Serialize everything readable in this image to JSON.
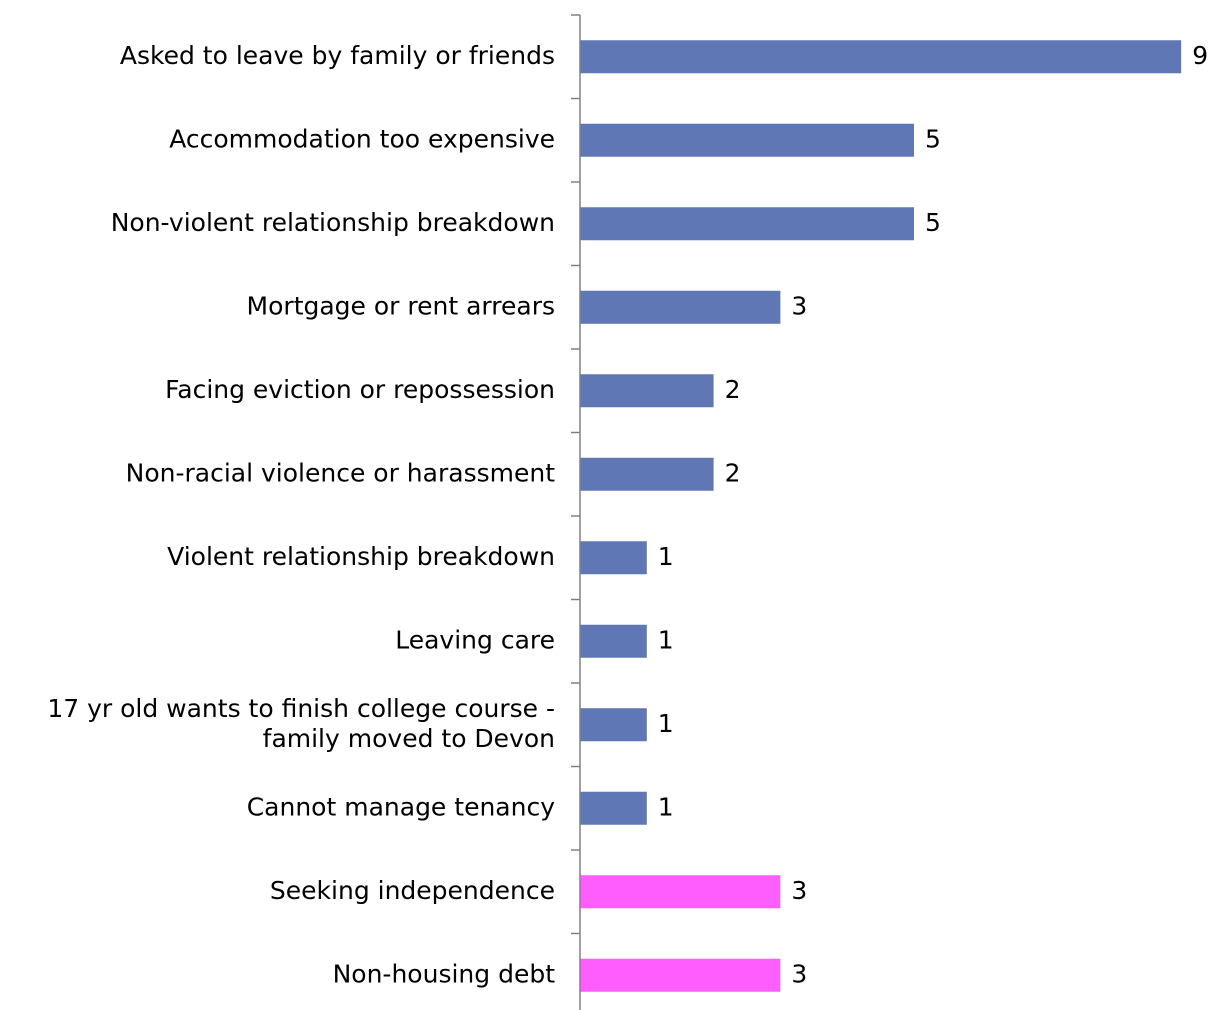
{
  "chart_data": {
    "type": "bar",
    "orientation": "horizontal",
    "title": "",
    "xlabel": "",
    "ylabel": "",
    "xlim": [
      0,
      9
    ],
    "grid": false,
    "legend": "none",
    "categories": [
      [
        "Asked to leave by family or friends"
      ],
      [
        "Accommodation too expensive"
      ],
      [
        "Non-violent relationship breakdown"
      ],
      [
        "Mortgage or rent arrears"
      ],
      [
        "Facing eviction or repossession"
      ],
      [
        "Non-racial violence or harassment"
      ],
      [
        "Violent relationship breakdown"
      ],
      [
        "Leaving care"
      ],
      [
        "17 yr old wants to finish college course -",
        "family moved to Devon"
      ],
      [
        "Cannot manage tenancy"
      ],
      [
        "Seeking independence"
      ],
      [
        "Non-housing debt"
      ]
    ],
    "values": [
      9,
      5,
      5,
      3,
      2,
      2,
      1,
      1,
      1,
      1,
      3,
      3
    ],
    "bar_colors": [
      "#5f77b5",
      "#5f77b5",
      "#5f77b5",
      "#5f77b5",
      "#5f77b5",
      "#5f77b5",
      "#5f77b5",
      "#5f77b5",
      "#5f77b5",
      "#5f77b5",
      "#ff5eff",
      "#ff5eff"
    ]
  }
}
